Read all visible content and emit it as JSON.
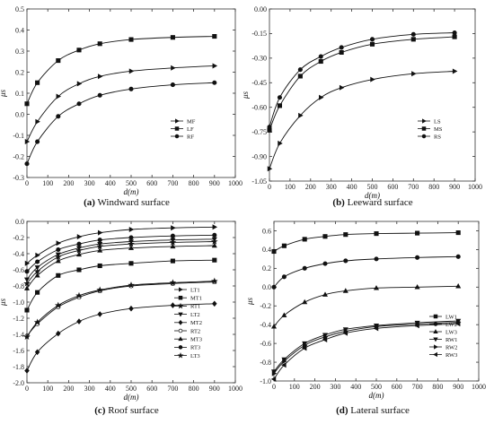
{
  "chart_data": [
    {
      "type": "line",
      "id": "a",
      "caption_letter": "(a)",
      "caption_text": "Windward surface",
      "xlabel": "d(m)",
      "ylabel": "μs",
      "xlim": [
        0,
        1000
      ],
      "ylim": [
        -0.3,
        0.5
      ],
      "xticks": [
        0,
        100,
        200,
        300,
        400,
        500,
        600,
        700,
        800,
        900,
        1000
      ],
      "yticks": [
        -0.3,
        -0.2,
        -0.1,
        0.0,
        0.1,
        0.2,
        0.3,
        0.4,
        0.5
      ],
      "ytick_labels": [
        "-0.3",
        "-0.2",
        "-0.1",
        "0.0",
        "0.1",
        "0.2",
        "0.3",
        "0.4",
        "0.5"
      ],
      "legend": "right-middle",
      "series": [
        {
          "name": "MF",
          "marker": "triangle-right",
          "x": [
            0,
            50,
            150,
            250,
            350,
            500,
            700,
            900
          ],
          "y": [
            -0.13,
            -0.035,
            0.085,
            0.145,
            0.18,
            0.205,
            0.22,
            0.23
          ]
        },
        {
          "name": "LF",
          "marker": "square",
          "x": [
            0,
            50,
            150,
            250,
            350,
            500,
            700,
            900
          ],
          "y": [
            0.05,
            0.15,
            0.255,
            0.305,
            0.335,
            0.355,
            0.365,
            0.37
          ]
        },
        {
          "name": "RF",
          "marker": "circle",
          "x": [
            0,
            50,
            150,
            250,
            350,
            500,
            700,
            900
          ],
          "y": [
            -0.235,
            -0.13,
            -0.01,
            0.05,
            0.09,
            0.12,
            0.14,
            0.15
          ]
        }
      ]
    },
    {
      "type": "line",
      "id": "b",
      "caption_letter": "(b)",
      "caption_text": "Leeward surface",
      "xlabel": "d(m)",
      "ylabel": "μs",
      "xlim": [
        0,
        1000
      ],
      "ylim": [
        -1.05,
        0.0
      ],
      "xticks": [
        0,
        100,
        200,
        300,
        400,
        500,
        600,
        700,
        800,
        900,
        1000
      ],
      "yticks": [
        -1.05,
        -0.9,
        -0.75,
        -0.6,
        -0.45,
        -0.3,
        -0.15,
        0.0
      ],
      "ytick_labels": [
        "-1.05",
        "-0.90",
        "-0.75",
        "-0.60",
        "-0.45",
        "-0.30",
        "-0.15",
        "0.00"
      ],
      "legend": "right-middle",
      "series": [
        {
          "name": "LS",
          "marker": "triangle-right",
          "x": [
            0,
            50,
            150,
            250,
            350,
            500,
            700,
            900
          ],
          "y": [
            -0.975,
            -0.82,
            -0.65,
            -0.54,
            -0.48,
            -0.43,
            -0.395,
            -0.38
          ]
        },
        {
          "name": "MS",
          "marker": "square",
          "x": [
            0,
            50,
            150,
            250,
            350,
            500,
            700,
            900
          ],
          "y": [
            -0.74,
            -0.59,
            -0.41,
            -0.32,
            -0.265,
            -0.215,
            -0.185,
            -0.17
          ]
        },
        {
          "name": "RS",
          "marker": "circle",
          "x": [
            0,
            50,
            150,
            250,
            350,
            500,
            700,
            900
          ],
          "y": [
            -0.72,
            -0.54,
            -0.37,
            -0.29,
            -0.235,
            -0.185,
            -0.155,
            -0.145
          ]
        }
      ]
    },
    {
      "type": "line",
      "id": "c",
      "caption_letter": "(c)",
      "caption_text": "Roof surface",
      "xlabel": "d(m)",
      "ylabel": "μs",
      "xlim": [
        0,
        1000
      ],
      "ylim": [
        -2.0,
        0.0
      ],
      "xticks": [
        0,
        100,
        200,
        300,
        400,
        500,
        600,
        700,
        800,
        900,
        1000
      ],
      "yticks": [
        -2.0,
        -1.8,
        -1.6,
        -1.4,
        -1.2,
        -1.0,
        -0.8,
        -0.6,
        -0.4,
        -0.2,
        0.0
      ],
      "ytick_labels": [
        "-2.0",
        "-1.8",
        "-1.6",
        "-1.4",
        "-1.2",
        "-1.0",
        "-0.8",
        "-0.6",
        "-0.4",
        "-0.2",
        "0.0"
      ],
      "legend": "right-bottom",
      "series": [
        {
          "name": "LT1",
          "marker": "triangle-right",
          "x": [
            0,
            50,
            150,
            250,
            350,
            500,
            700,
            900
          ],
          "y": [
            -0.52,
            -0.42,
            -0.27,
            -0.19,
            -0.14,
            -0.1,
            -0.08,
            -0.07
          ]
        },
        {
          "name": "MT1",
          "marker": "square",
          "x": [
            0,
            50,
            150,
            250,
            350,
            500,
            700,
            900
          ],
          "y": [
            -1.1,
            -0.88,
            -0.67,
            -0.6,
            -0.55,
            -0.52,
            -0.49,
            -0.48
          ]
        },
        {
          "name": "RT1",
          "marker": "star",
          "x": [
            0,
            50,
            150,
            250,
            350,
            500,
            700,
            900
          ],
          "y": [
            -0.77,
            -0.62,
            -0.44,
            -0.36,
            -0.31,
            -0.28,
            -0.26,
            -0.25
          ]
        },
        {
          "name": "LT2",
          "marker": "triangle-down",
          "x": [
            0,
            50,
            150,
            250,
            350,
            500,
            700,
            900
          ],
          "y": [
            -0.72,
            -0.57,
            -0.41,
            -0.33,
            -0.28,
            -0.25,
            -0.23,
            -0.22
          ]
        },
        {
          "name": "MT2",
          "marker": "diamond",
          "x": [
            0,
            50,
            150,
            250,
            350,
            500,
            700,
            900
          ],
          "y": [
            -1.85,
            -1.62,
            -1.39,
            -1.24,
            -1.15,
            -1.08,
            -1.04,
            -1.02
          ]
        },
        {
          "name": "RT2",
          "marker": "circle-open",
          "x": [
            0,
            50,
            150,
            250,
            350,
            500,
            700,
            900
          ],
          "y": [
            -1.42,
            -1.27,
            -1.06,
            -0.94,
            -0.86,
            -0.8,
            -0.77,
            -0.75
          ]
        },
        {
          "name": "MT3",
          "marker": "triangle-up",
          "x": [
            0,
            50,
            150,
            250,
            350,
            500,
            700,
            900
          ],
          "y": [
            -0.83,
            -0.67,
            -0.49,
            -0.41,
            -0.36,
            -0.33,
            -0.31,
            -0.3
          ]
        },
        {
          "name": "RT3",
          "marker": "circle",
          "x": [
            0,
            50,
            150,
            250,
            350,
            500,
            700,
            900
          ],
          "y": [
            -0.62,
            -0.5,
            -0.35,
            -0.28,
            -0.23,
            -0.2,
            -0.18,
            -0.17
          ]
        },
        {
          "name": "LT3",
          "marker": "star",
          "x": [
            0,
            50,
            150,
            250,
            350,
            500,
            700,
            900
          ],
          "y": [
            -1.43,
            -1.25,
            -1.04,
            -0.92,
            -0.85,
            -0.79,
            -0.76,
            -0.74
          ]
        }
      ]
    },
    {
      "type": "line",
      "id": "d",
      "caption_letter": "(d)",
      "caption_text": "Lateral surface",
      "xlabel": "d(m)",
      "ylabel": "μs",
      "xlim": [
        0,
        1000
      ],
      "ylim": [
        -1.0,
        0.7
      ],
      "xticks": [
        0,
        100,
        200,
        300,
        400,
        500,
        600,
        700,
        800,
        900,
        1000
      ],
      "yticks": [
        -1.0,
        -0.8,
        -0.6,
        -0.4,
        -0.2,
        0.0,
        0.2,
        0.4,
        0.6
      ],
      "ytick_labels": [
        "-1.0",
        "-0.8",
        "-0.6",
        "-0.4",
        "-0.2",
        "0.0",
        "0.2",
        "0.4",
        "0.6"
      ],
      "legend": "right-bottom",
      "series": [
        {
          "name": "LW1",
          "marker": "square",
          "x": [
            0,
            50,
            150,
            250,
            350,
            500,
            700,
            900
          ],
          "y": [
            0.38,
            0.44,
            0.51,
            0.54,
            0.56,
            0.57,
            0.575,
            0.58
          ]
        },
        {
          "name": "LW2",
          "marker": "circle",
          "x": [
            0,
            50,
            150,
            250,
            350,
            500,
            700,
            900
          ],
          "y": [
            0.0,
            0.11,
            0.2,
            0.25,
            0.28,
            0.3,
            0.315,
            0.325
          ]
        },
        {
          "name": "LW3",
          "marker": "triangle-up",
          "x": [
            0,
            50,
            150,
            250,
            350,
            500,
            700,
            900
          ],
          "y": [
            -0.42,
            -0.3,
            -0.16,
            -0.08,
            -0.04,
            -0.01,
            0.0,
            0.01
          ]
        },
        {
          "name": "RW1",
          "marker": "triangle-down",
          "x": [
            0,
            50,
            150,
            250,
            350,
            500,
            700,
            900
          ],
          "y": [
            -0.9,
            -0.77,
            -0.6,
            -0.51,
            -0.45,
            -0.41,
            -0.38,
            -0.36
          ]
        },
        {
          "name": "RW2",
          "marker": "triangle-right",
          "x": [
            0,
            50,
            150,
            250,
            350,
            500,
            700,
            900
          ],
          "y": [
            -0.92,
            -0.79,
            -0.62,
            -0.53,
            -0.47,
            -0.42,
            -0.395,
            -0.375
          ]
        },
        {
          "name": "RW3",
          "marker": "triangle-left",
          "x": [
            0,
            50,
            150,
            250,
            350,
            500,
            700,
            900
          ],
          "y": [
            -0.98,
            -0.83,
            -0.65,
            -0.56,
            -0.49,
            -0.44,
            -0.41,
            -0.39
          ]
        }
      ]
    }
  ]
}
